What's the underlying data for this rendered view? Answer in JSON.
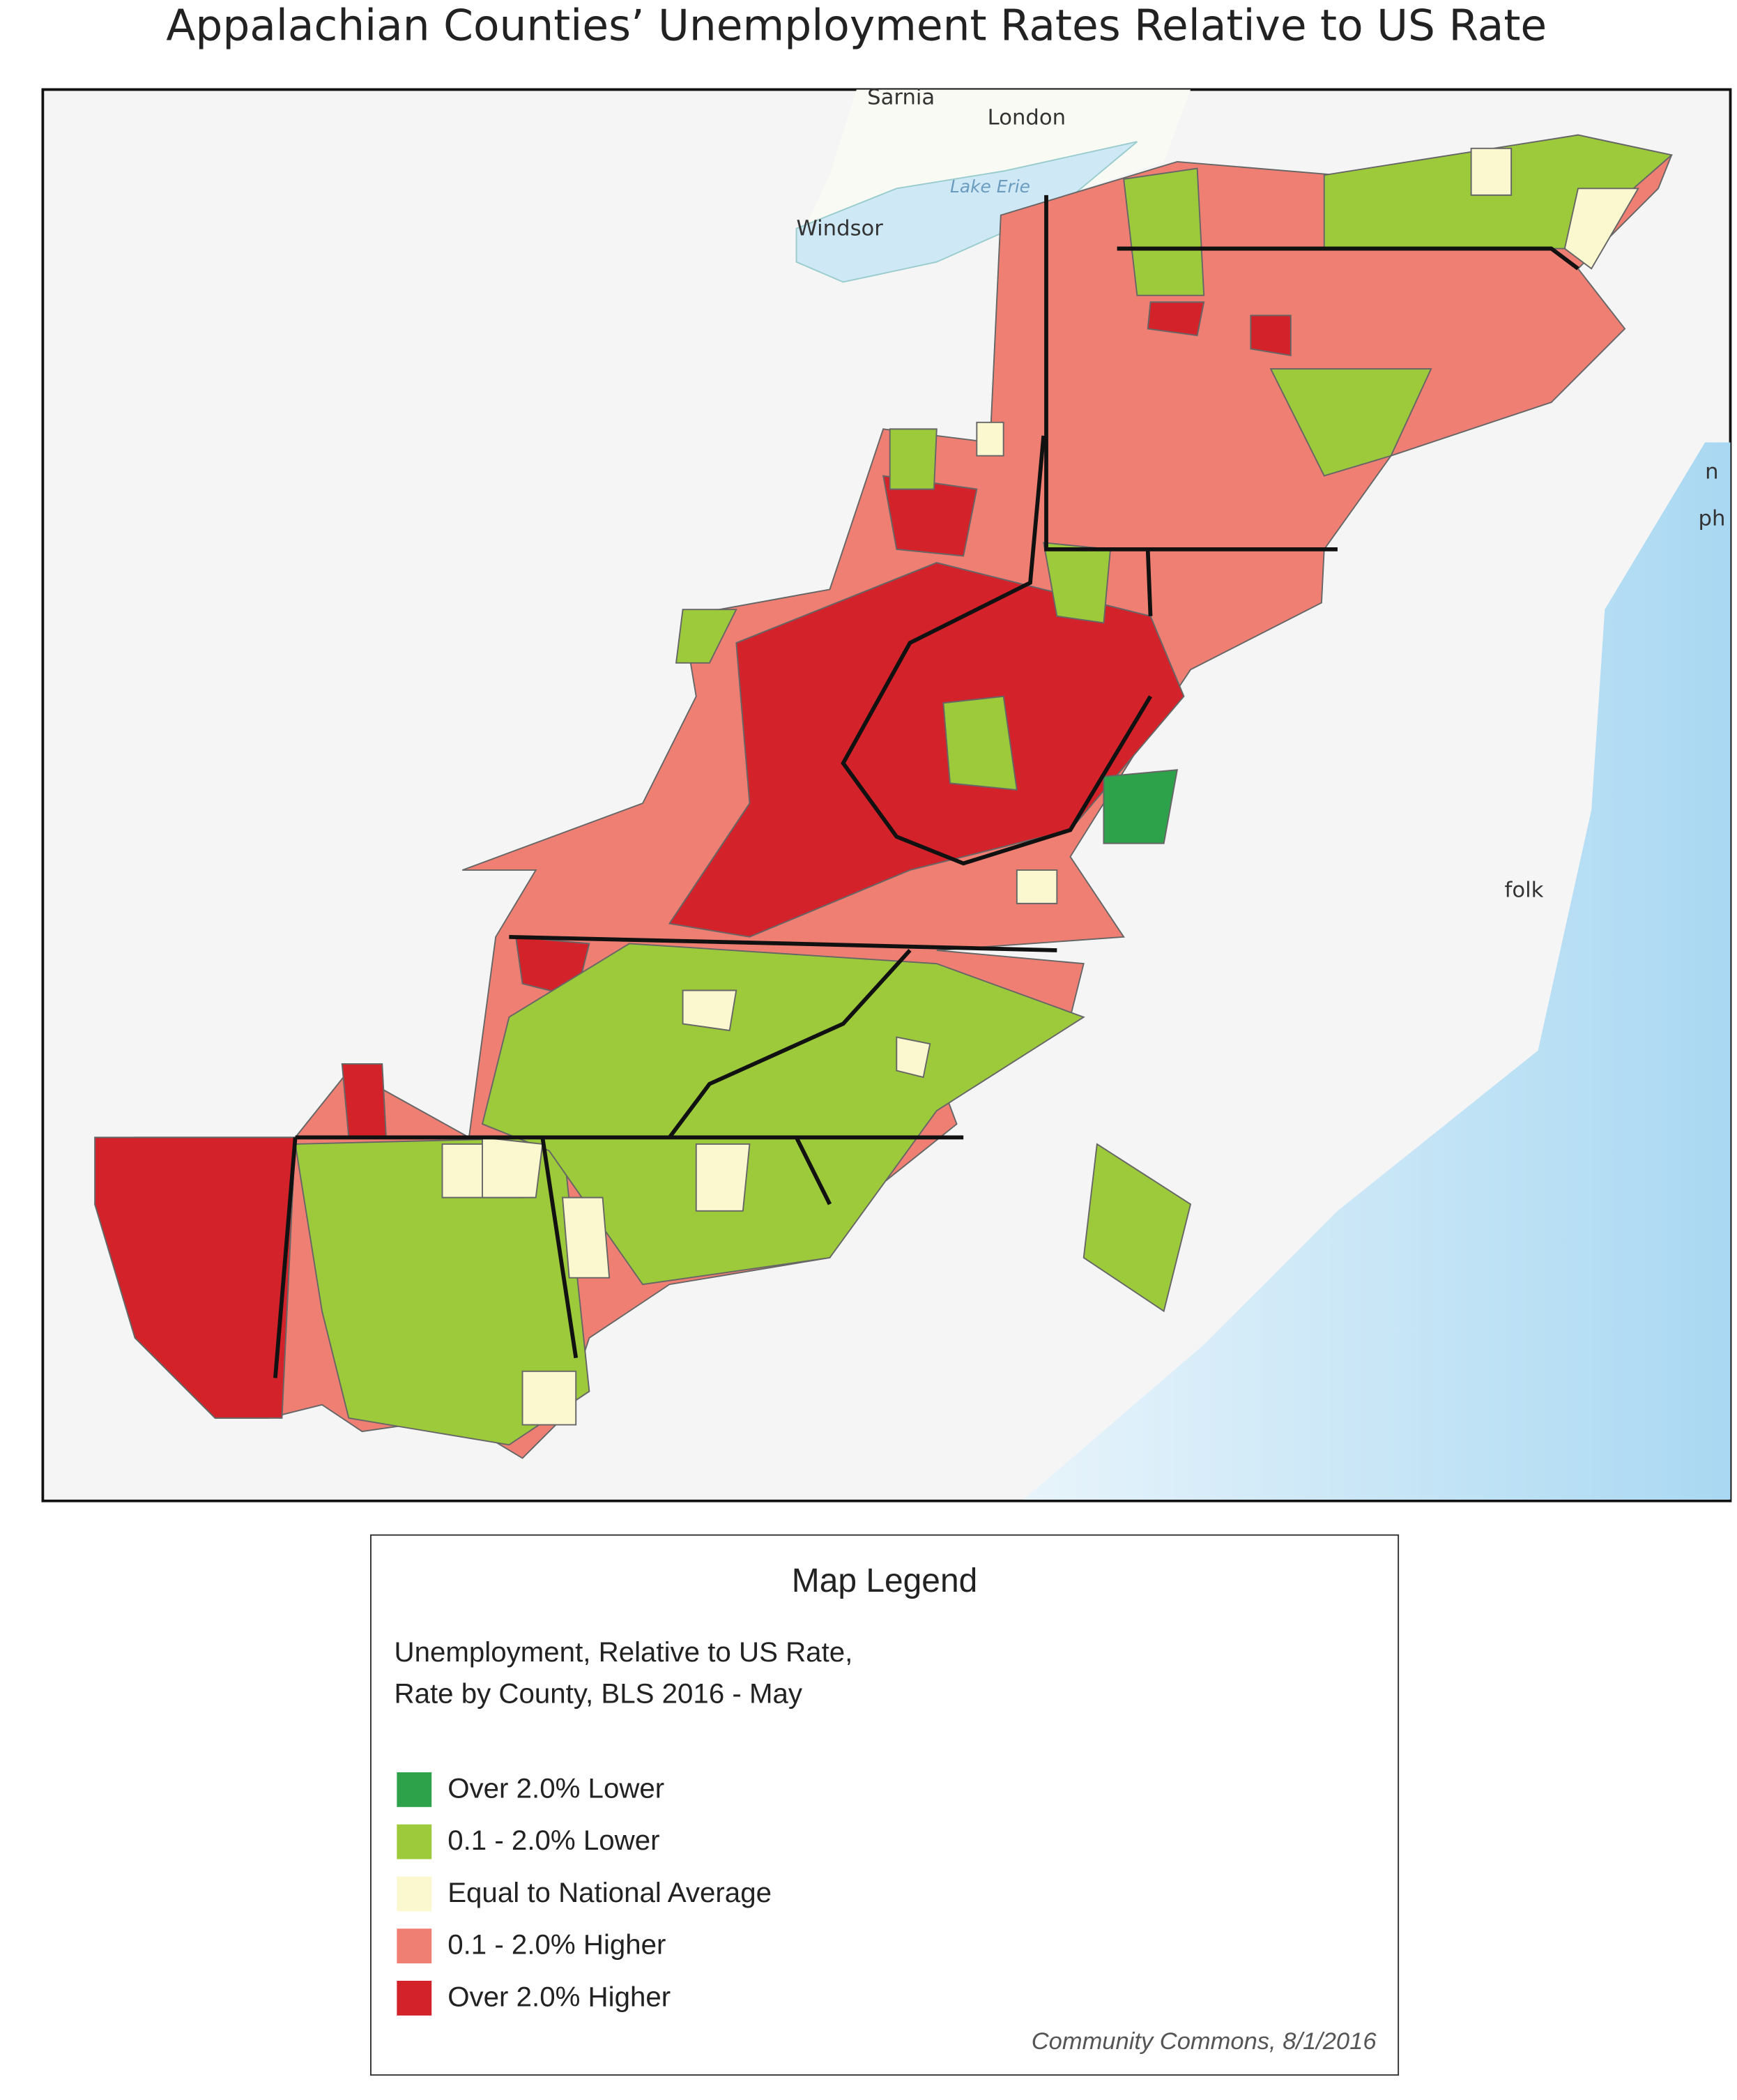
{
  "title": "Appalachian Counties’ Unemployment Rates Relative to US Rate",
  "map": {
    "labels": [
      "Sarnia",
      "London",
      "Windsor",
      "Lake Erie",
      "n",
      "ph",
      "folk"
    ]
  },
  "legend": {
    "title": "Map Legend",
    "subtitle": "Unemployment, Relative to US Rate, Rate by County, BLS 2016 - May",
    "items": [
      {
        "label": "Over 2.0% Lower",
        "color": "#2ea24a"
      },
      {
        "label": "0.1 - 2.0% Lower",
        "color": "#9dca3b"
      },
      {
        "label": "Equal to National Average",
        "color": "#fbf8cf"
      },
      {
        "label": "0.1 - 2.0% Higher",
        "color": "#f07f73"
      },
      {
        "label": "Over 2.0% Higher",
        "color": "#d3222a"
      }
    ],
    "source": "Community Commons, 8/1/2016"
  }
}
